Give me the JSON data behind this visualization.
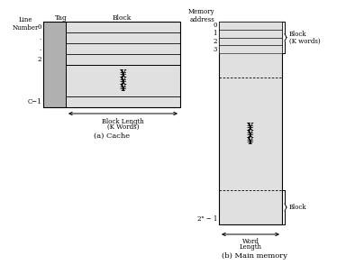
{
  "bg_color": "#ffffff",
  "cache_title": "(a) Cache",
  "memory_title": "(b) Main memory",
  "memory_address_label": "Memory\naddress",
  "yen_symbol": "¥",
  "gray_dark": "#b0b0b0",
  "gray_light": "#e0e0e0",
  "block_length_label1": "Block Length",
  "block_length_label2": "(K Words)",
  "word_length_label1": "Word",
  "word_length_label2": "Length",
  "block_k_words1": "Block",
  "block_k_words2": "(K words)",
  "block_label": "Block",
  "two_n_minus1": "2ⁿ − 1"
}
